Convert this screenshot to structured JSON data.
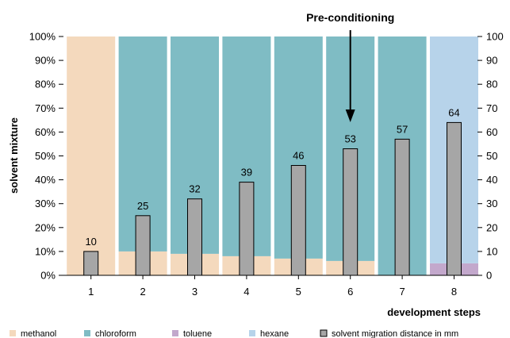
{
  "chart_data": {
    "type": "bar",
    "categories": [
      "1",
      "2",
      "3",
      "4",
      "5",
      "6",
      "7",
      "8"
    ],
    "xlabel": "development steps",
    "ylabel": "solvent mixture",
    "ylim_left": [
      0,
      100
    ],
    "ylim_right": [
      0,
      100
    ],
    "left_ticks": [
      "0%",
      "10%",
      "20%",
      "30%",
      "40%",
      "50%",
      "60%",
      "70%",
      "80%",
      "90%",
      "100%"
    ],
    "right_ticks": [
      "0",
      "10",
      "20",
      "30",
      "40",
      "50",
      "60",
      "70",
      "80",
      "90",
      "100"
    ],
    "stacked_series": [
      {
        "name": "methanol",
        "color": "#f4d9bd",
        "values": [
          100,
          10,
          9,
          8,
          7,
          6,
          0,
          0
        ]
      },
      {
        "name": "chloroform",
        "color": "#7fbcc4",
        "values": [
          0,
          90,
          91,
          92,
          93,
          94,
          100,
          0
        ]
      },
      {
        "name": "toluene",
        "color": "#c3a8cc",
        "values": [
          0,
          0,
          0,
          0,
          0,
          0,
          0,
          5
        ]
      },
      {
        "name": "hexane",
        "color": "#b7d3ea",
        "values": [
          0,
          0,
          0,
          0,
          0,
          0,
          0,
          95
        ]
      }
    ],
    "bar_series": {
      "name": "solvent migration distance in mm",
      "color": "#a6a6a6",
      "values": [
        10,
        25,
        32,
        39,
        46,
        53,
        57,
        64
      ],
      "labels": [
        "10",
        "25",
        "32",
        "39",
        "46",
        "53",
        "57",
        "64"
      ]
    },
    "annotation": {
      "text": "Pre-conditioning",
      "category": "6"
    },
    "grid": false,
    "legend_position": "bottom"
  }
}
